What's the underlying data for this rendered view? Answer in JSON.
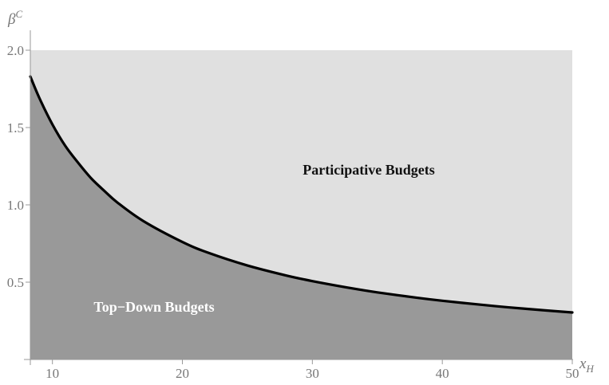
{
  "chart_data": {
    "type": "area",
    "title": "",
    "xlabel": {
      "main": "x",
      "subscript": "H"
    },
    "ylabel": {
      "main": "β",
      "superscript": "C"
    },
    "xlim": [
      8.3,
      50
    ],
    "ylim": [
      0,
      2.0
    ],
    "xticks": [
      "10",
      "20",
      "30",
      "40",
      "50"
    ],
    "xtick_values": [
      10,
      20,
      30,
      40,
      50
    ],
    "yticks": [
      "0.5",
      "1.0",
      "1.5",
      "2.0"
    ],
    "ytick_values": [
      0.5,
      1.0,
      1.5,
      2.0
    ],
    "grid": false,
    "series": [
      {
        "name": "boundary",
        "x": [
          8.3,
          9,
          10,
          11,
          12,
          13,
          14,
          15,
          17,
          20,
          22,
          25,
          28,
          30,
          33,
          35,
          38,
          40,
          43,
          45,
          48,
          50
        ],
        "y": [
          1.83,
          1.69,
          1.52,
          1.38,
          1.27,
          1.17,
          1.09,
          1.015,
          0.895,
          0.76,
          0.69,
          0.608,
          0.543,
          0.507,
          0.461,
          0.434,
          0.4,
          0.38,
          0.354,
          0.338,
          0.317,
          0.304
        ]
      }
    ],
    "regions": [
      {
        "label": "Participative Budgets",
        "position": "above curve",
        "color": "#e0e0e0"
      },
      {
        "label": "Top−Down Budgets",
        "position": "below curve",
        "color": "#999999"
      }
    ],
    "curve_color": "#000000"
  }
}
